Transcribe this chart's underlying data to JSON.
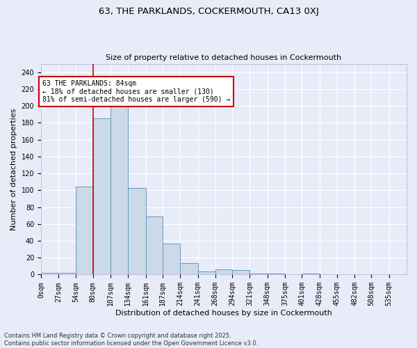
{
  "title": "63, THE PARKLANDS, COCKERMOUTH, CA13 0XJ",
  "subtitle": "Size of property relative to detached houses in Cockermouth",
  "xlabel": "Distribution of detached houses by size in Cockermouth",
  "ylabel": "Number of detached properties",
  "footer_line1": "Contains HM Land Registry data © Crown copyright and database right 2025.",
  "footer_line2": "Contains public sector information licensed under the Open Government Licence v3.0.",
  "bin_labels": [
    "0sqm",
    "27sqm",
    "54sqm",
    "80sqm",
    "107sqm",
    "134sqm",
    "161sqm",
    "187sqm",
    "214sqm",
    "241sqm",
    "268sqm",
    "294sqm",
    "321sqm",
    "348sqm",
    "375sqm",
    "401sqm",
    "428sqm",
    "455sqm",
    "482sqm",
    "508sqm",
    "535sqm"
  ],
  "bar_values": [
    2,
    2,
    104,
    185,
    200,
    103,
    69,
    37,
    14,
    4,
    6,
    5,
    1,
    1,
    0,
    1,
    0,
    0,
    0,
    0,
    0
  ],
  "bar_color": "#ccd9e8",
  "bar_edge_color": "#6699bb",
  "background_color": "#e8ecf8",
  "grid_color": "#d8dce8",
  "vline_x": 80,
  "vline_color": "#cc0000",
  "annotation_text": "63 THE PARKLANDS: 84sqm\n← 18% of detached houses are smaller (130)\n81% of semi-detached houses are larger (590) →",
  "annotation_box_color": "white",
  "annotation_box_edge_color": "#cc0000",
  "ylim": [
    0,
    250
  ],
  "yticks": [
    0,
    20,
    40,
    60,
    80,
    100,
    120,
    140,
    160,
    180,
    200,
    220,
    240
  ],
  "bin_edges": [
    0,
    27,
    54,
    80,
    107,
    134,
    161,
    187,
    214,
    241,
    268,
    294,
    321,
    348,
    375,
    401,
    428,
    455,
    482,
    508,
    535,
    562
  ],
  "title_fontsize": 9.5,
  "subtitle_fontsize": 8,
  "tick_fontsize": 7,
  "ylabel_fontsize": 8,
  "xlabel_fontsize": 8,
  "annotation_fontsize": 7,
  "footer_fontsize": 6
}
